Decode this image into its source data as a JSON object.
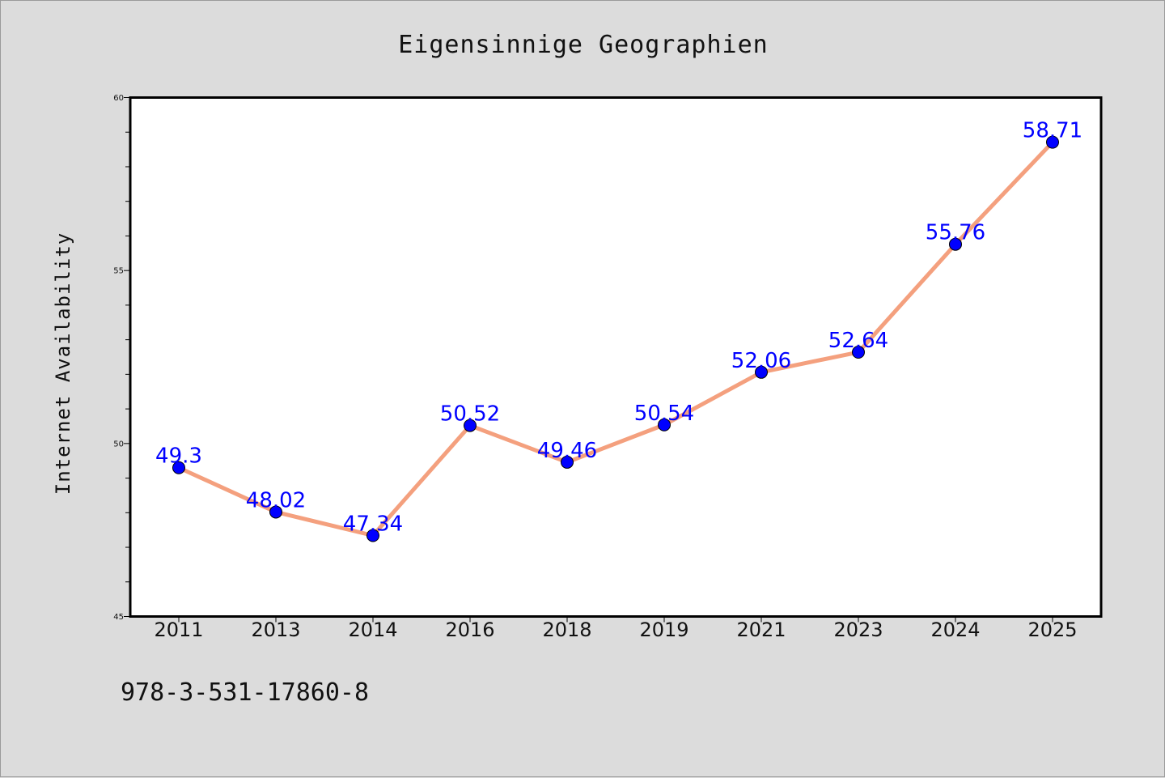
{
  "chart_data": {
    "type": "line",
    "title": "Eigensinnige Geographien",
    "xlabel": "",
    "ylabel": "Internet Availability",
    "categories": [
      "2011",
      "2013",
      "2014",
      "2016",
      "2018",
      "2019",
      "2021",
      "2023",
      "2024",
      "2025"
    ],
    "series": [
      {
        "values": [
          49.3,
          48.02,
          47.34,
          50.52,
          49.46,
          50.54,
          52.06,
          52.64,
          55.76,
          58.71
        ],
        "line_color": "#f4a07e",
        "marker_color": "#0000ff"
      }
    ],
    "data_labels": [
      "49.3",
      "48.02",
      "47.34",
      "50.52",
      "49.46",
      "50.54",
      "52.06",
      "52.64",
      "55.76",
      "58.71"
    ],
    "ylim": [
      45,
      60
    ],
    "yticks": [
      "45",
      "50",
      "55",
      "60"
    ],
    "grid": false,
    "legend": "none"
  },
  "footnote": "978-3-531-17860-8",
  "colors": {
    "background": "#dcdcdc",
    "plot_background": "#ffffff",
    "axis": "#000000",
    "label_color": "#0000ff"
  }
}
